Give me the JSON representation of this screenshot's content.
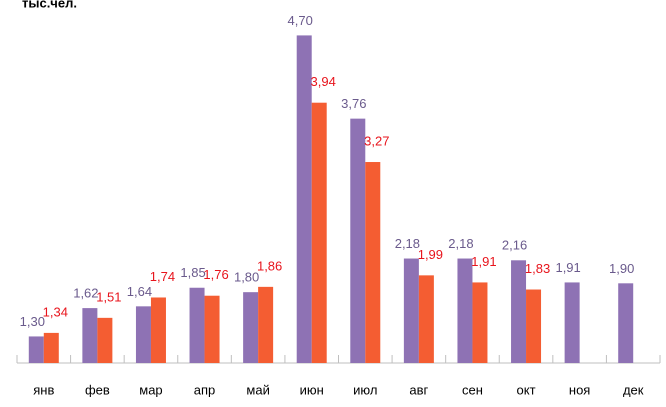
{
  "chart_data": {
    "type": "bar",
    "title": "тыс.чел.",
    "categories": [
      "янв",
      "фев",
      "мар",
      "апр",
      "май",
      "июн",
      "июл",
      "авг",
      "сен",
      "окт",
      "ноя",
      "дек"
    ],
    "series": [
      {
        "name": null,
        "color": "#8e72b4",
        "label_color": "#6a5a8c",
        "values": [
          1.3,
          1.62,
          1.64,
          1.85,
          1.8,
          4.7,
          3.76,
          2.18,
          2.18,
          2.16,
          1.91,
          1.9
        ],
        "value_labels": [
          "1,30",
          "1,62",
          "1,64",
          "1,85",
          "1,80",
          "4,70",
          "3,76",
          "2,18",
          "2,18",
          "2,16",
          "1,91",
          "1,90"
        ]
      },
      {
        "name": null,
        "color": "#f45d32",
        "label_color": "#e8141c",
        "values": [
          1.34,
          1.51,
          1.74,
          1.76,
          1.86,
          3.94,
          3.27,
          1.99,
          1.91,
          1.83,
          null,
          null
        ],
        "value_labels": [
          "1,34",
          "1,51",
          "1,74",
          "1,76",
          "1,86",
          "3,94",
          "3,27",
          "1,99",
          "1,91",
          "1,83",
          null,
          null
        ]
      }
    ],
    "ylim": [
      1.0,
      5.1
    ]
  }
}
